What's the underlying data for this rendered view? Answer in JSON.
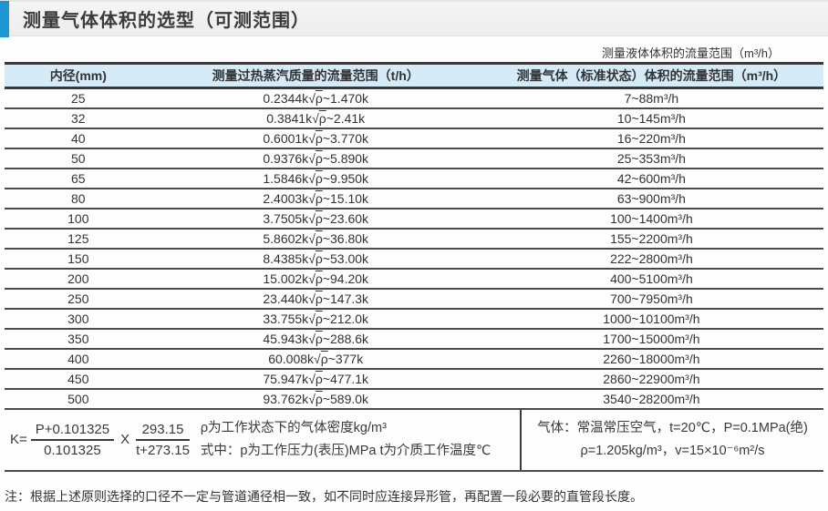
{
  "page": {
    "title": "测量气体体积的选型（可测范围）",
    "liquid_note": "测量液体体积的流量范围（m³/h）",
    "footnote": "注：根据上述原则选择的口径不一定与管道通径相一致，如不同时应连接异形管，再配置一段必要的直管段长度。"
  },
  "colors": {
    "accent_blue": "#1e96d2",
    "header_bg": "#d6ebf8",
    "border_dark": "#3a3a3a",
    "text": "#3a3a3a"
  },
  "table": {
    "headers": [
      "内径(mm)",
      "测量过热蒸汽质量的流量范围（t/h）",
      "测量气体（标准状态）体积的流量范围（m³/h）"
    ],
    "rows": [
      {
        "dn": "25",
        "steam": "0.2344k√ρ~1.470k",
        "gas": "7~88m³/h"
      },
      {
        "dn": "32",
        "steam": "0.3841k√ρ~2.41k",
        "gas": "10~145m³/h"
      },
      {
        "dn": "40",
        "steam": "0.6001k√ρ~3.770k",
        "gas": "16~220m³/h"
      },
      {
        "dn": "50",
        "steam": "0.9376k√ρ~5.890k",
        "gas": "25~353m³/h"
      },
      {
        "dn": "65",
        "steam": "1.5846k√ρ~9.950k",
        "gas": "42~600m³/h"
      },
      {
        "dn": "80",
        "steam": "2.4003k√ρ~15.10k",
        "gas": "63~900m³/h"
      },
      {
        "dn": "100",
        "steam": "3.7505k√ρ~23.60k",
        "gas": "100~1400m³/h"
      },
      {
        "dn": "125",
        "steam": "5.8602k√ρ~36.80k",
        "gas": "155~2200m³/h"
      },
      {
        "dn": "150",
        "steam": "8.4385k√ρ~53.00k",
        "gas": "222~2800m³/h"
      },
      {
        "dn": "200",
        "steam": "15.002k√ρ~94.20k",
        "gas": "400~5100m³/h"
      },
      {
        "dn": "250",
        "steam": "23.440k√ρ~147.3k",
        "gas": "700~7950m³/h"
      },
      {
        "dn": "300",
        "steam": "33.755k√ρ~212.0k",
        "gas": "1000~10100m³/h"
      },
      {
        "dn": "350",
        "steam": "45.943k√ρ~288.6k",
        "gas": "1700~15000m³/h"
      },
      {
        "dn": "400",
        "steam": "60.008k√ρ~377k",
        "gas": "2260~18000m³/h"
      },
      {
        "dn": "450",
        "steam": "75.947k√ρ~477.1k",
        "gas": "2860~22900m³/h"
      },
      {
        "dn": "500",
        "steam": "93.762k√ρ~589.0k",
        "gas": "3540~28200m³/h"
      }
    ]
  },
  "formula": {
    "k_label": "K=",
    "frac1_num": "P+0.101325",
    "frac1_den": "0.101325",
    "multiply": "X",
    "frac2_num": "293.15",
    "frac2_den": "t+273.15",
    "line1": "ρ为工作状态下的气体密度kg/m³",
    "line2": "式中：p为工作压力(表压)MPa t为介质工作温度℃",
    "gas_line1": "气体：常温常压空气，t=20℃，P=0.1MPa(绝)",
    "gas_line2": "ρ=1.205kg/m³，v=15×10⁻⁶m²/s"
  }
}
